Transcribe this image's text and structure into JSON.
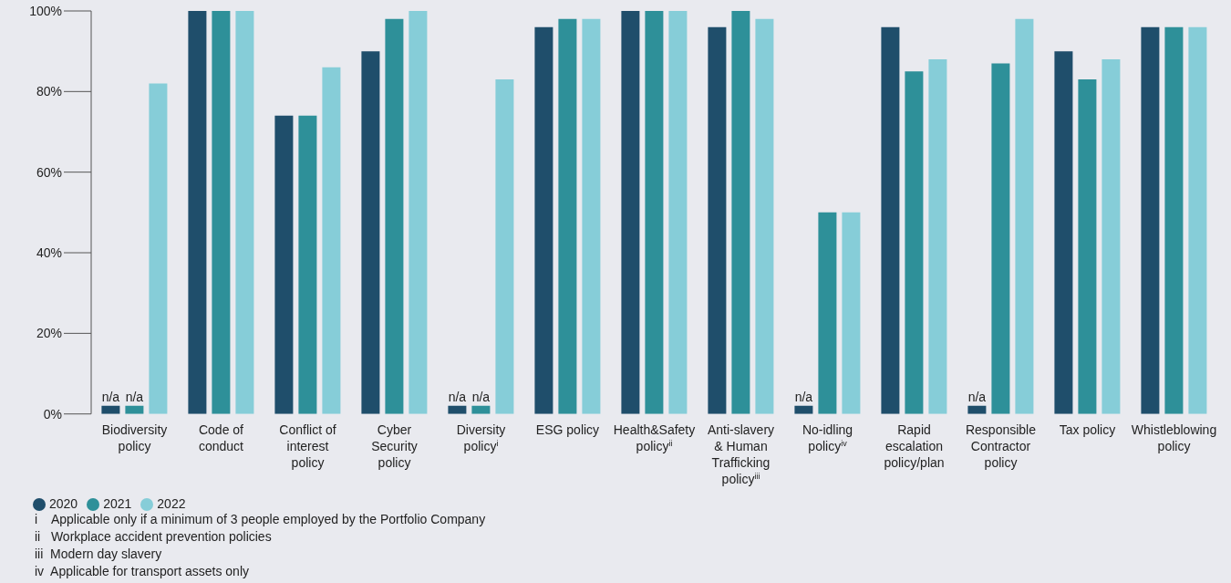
{
  "chart_data": {
    "type": "bar",
    "categories": [
      "Biodiversity policy",
      "Code of conduct",
      "Conflict of interest policy",
      "Cyber Security policy",
      "Diversity policy$^{i}$",
      "ESG policy",
      "Health&Safety policy$^{ii}$",
      "Anti-slavery & Human Trafficking policy$^{iii}$",
      "No-idling policy$^{iv}$",
      "Rapid escalation policy/plan",
      "Responsible Contractor policy",
      "Tax policy",
      "Whistleblowing policy"
    ],
    "series": [
      {
        "name": "2020",
        "color": "#1f4e6b",
        "values": [
          2,
          100,
          74,
          90,
          2,
          96,
          100,
          96,
          2,
          96,
          2,
          90,
          96
        ],
        "value_labels": [
          "n/a",
          null,
          null,
          null,
          "n/a",
          null,
          null,
          null,
          "n/a",
          null,
          "n/a",
          null,
          null
        ]
      },
      {
        "name": "2021",
        "color": "#2e9099",
        "values": [
          2,
          100,
          74,
          98,
          2,
          98,
          100,
          100,
          50,
          85,
          87,
          83,
          96
        ],
        "value_labels": [
          "n/a",
          null,
          null,
          null,
          "n/a",
          null,
          null,
          null,
          null,
          null,
          null,
          null,
          null
        ]
      },
      {
        "name": "2022",
        "color": "#86cdd8",
        "values": [
          82,
          100,
          86,
          100,
          83,
          98,
          100,
          98,
          50,
          88,
          98,
          88,
          96
        ]
      }
    ],
    "ylim": [
      0,
      100
    ],
    "yticks": [
      {
        "value": 0,
        "label": "0%"
      },
      {
        "value": 20,
        "label": "20%"
      },
      {
        "value": 40,
        "label": "40%"
      },
      {
        "value": 60,
        "label": "60%"
      },
      {
        "value": 80,
        "label": "80%"
      },
      {
        "value": 100,
        "label": "100%"
      }
    ],
    "legend": "bottom left",
    "annotations": [
      "i    Applicable only if a minimum of 3 people employed by the Portfolio Company",
      "ii   Workplace accident prevention policies",
      "iii  Modern day slavery",
      "iv  Applicable for transport assets only"
    ]
  }
}
